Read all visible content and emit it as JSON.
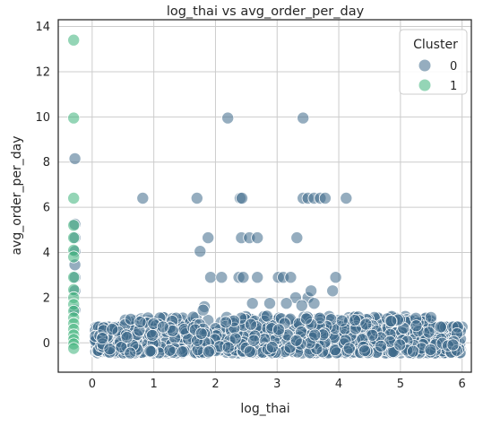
{
  "chart_data": {
    "type": "scatter",
    "title": "log_thai vs avg_order_per_day",
    "xlabel": "log_thai",
    "ylabel": "avg_order_per_day",
    "xlim": [
      -0.55,
      6.15
    ],
    "ylim": [
      -1.3,
      14.3
    ],
    "xticks": [
      0,
      1,
      2,
      3,
      4,
      5,
      6
    ],
    "yticks": [
      0,
      2,
      4,
      6,
      8,
      10,
      12,
      14
    ],
    "grid": true,
    "legend": {
      "title": "Cluster",
      "placement": "top-right"
    },
    "series": [
      {
        "name": "0",
        "color": "#3e6a8a",
        "points": [
          [
            0.82,
            6.4
          ],
          [
            1.7,
            6.4
          ],
          [
            2.4,
            6.4
          ],
          [
            2.43,
            6.4
          ],
          [
            3.42,
            6.4
          ],
          [
            3.5,
            6.4
          ],
          [
            3.6,
            6.4
          ],
          [
            3.7,
            6.4
          ],
          [
            3.78,
            6.4
          ],
          [
            4.12,
            6.4
          ],
          [
            2.2,
            9.95
          ],
          [
            3.42,
            9.95
          ],
          [
            1.75,
            4.05
          ],
          [
            1.88,
            4.65
          ],
          [
            2.42,
            4.65
          ],
          [
            2.55,
            4.65
          ],
          [
            2.68,
            4.65
          ],
          [
            3.32,
            4.65
          ],
          [
            1.92,
            2.9
          ],
          [
            2.1,
            2.9
          ],
          [
            2.38,
            2.9
          ],
          [
            2.45,
            2.9
          ],
          [
            2.68,
            2.9
          ],
          [
            3.02,
            2.9
          ],
          [
            3.1,
            2.9
          ],
          [
            3.22,
            2.9
          ],
          [
            3.95,
            2.9
          ],
          [
            3.3,
            2.0
          ],
          [
            3.5,
            2.0
          ],
          [
            3.55,
            2.3
          ],
          [
            3.9,
            2.3
          ],
          [
            1.82,
            1.6
          ],
          [
            1.8,
            1.45
          ],
          [
            2.6,
            1.75
          ],
          [
            2.88,
            1.75
          ],
          [
            3.15,
            1.75
          ],
          [
            3.4,
            1.65
          ],
          [
            3.6,
            1.75
          ],
          [
            -0.28,
            1.45
          ],
          [
            -0.28,
            2.3
          ],
          [
            -0.28,
            2.9
          ],
          [
            -0.28,
            3.45
          ],
          [
            -0.28,
            4.05
          ],
          [
            -0.28,
            4.65
          ],
          [
            -0.28,
            5.25
          ],
          [
            -0.28,
            8.15
          ]
        ],
        "cluster_band": {
          "x_range": [
            0.05,
            6.0
          ],
          "y_range": [
            -0.45,
            1.2
          ]
        }
      },
      {
        "name": "1",
        "color": "#3cb27a",
        "points": [
          [
            -0.3,
            13.4
          ],
          [
            -0.3,
            9.95
          ],
          [
            -0.3,
            6.4
          ],
          [
            -0.3,
            5.2
          ],
          [
            -0.3,
            4.65
          ],
          [
            -0.3,
            4.1
          ],
          [
            -0.3,
            3.8
          ],
          [
            -0.3,
            2.9
          ],
          [
            -0.3,
            2.35
          ],
          [
            -0.3,
            2.0
          ],
          [
            -0.3,
            1.7
          ],
          [
            -0.3,
            1.4
          ],
          [
            -0.3,
            1.1
          ],
          [
            -0.3,
            0.85
          ],
          [
            -0.3,
            0.6
          ],
          [
            -0.3,
            0.35
          ],
          [
            -0.3,
            0.15
          ],
          [
            -0.3,
            -0.05
          ],
          [
            -0.3,
            -0.25
          ]
        ]
      }
    ]
  }
}
